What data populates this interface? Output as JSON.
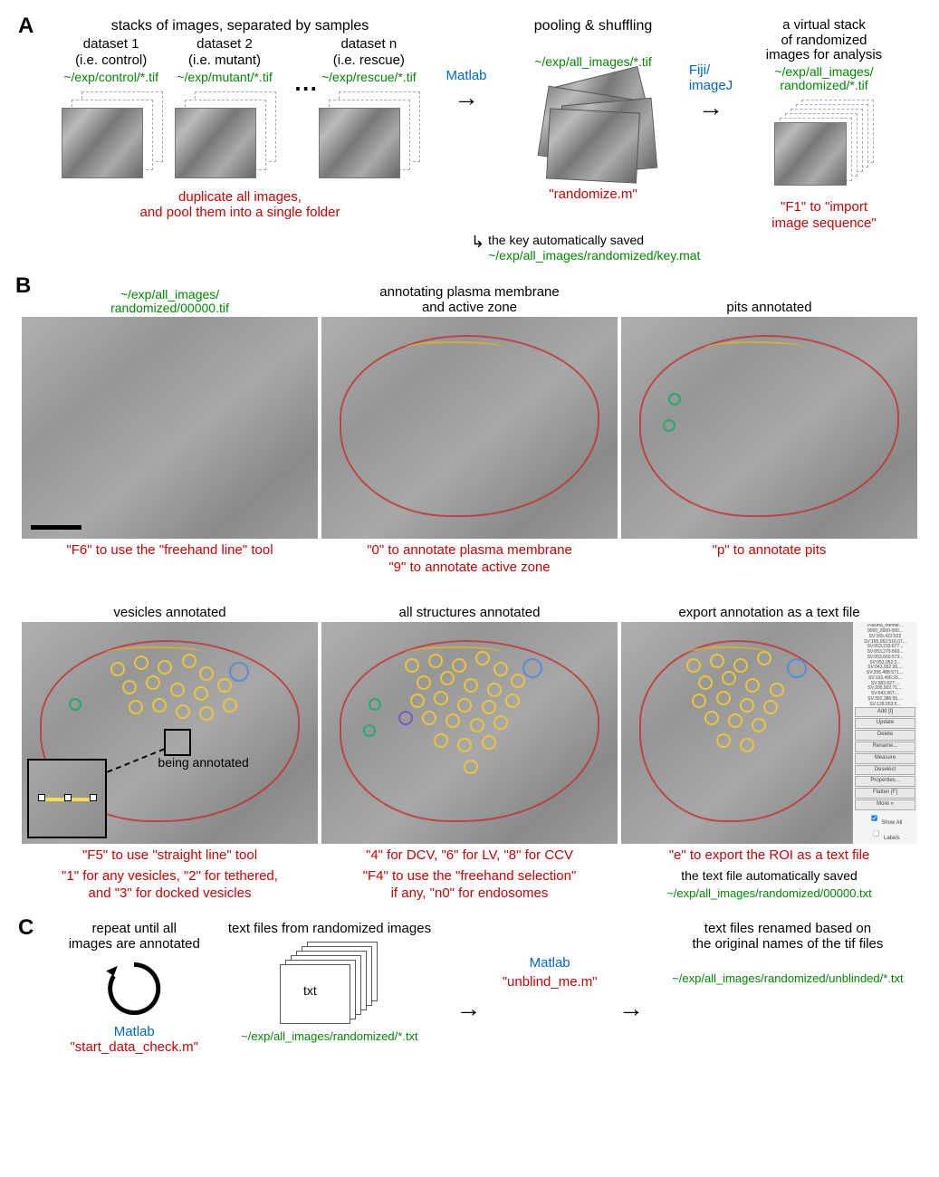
{
  "panelA": {
    "letter": "A",
    "head1": "stacks of images, separated by samples",
    "head2": "pooling & shuffling",
    "head3": "a virtual stack\nof randomized\nimages for analysis",
    "ds1_title": "dataset 1\n(i.e. control)",
    "ds1_path": "~/exp/control/*.tif",
    "ds2_title": "dataset 2\n(i.e. mutant)",
    "ds2_path": "~/exp/mutant/*.tif",
    "dsn_title": "dataset n\n(i.e. rescue)",
    "dsn_path": "~/exp/rescue/*.tif",
    "pool_path": "~/exp/all_images/*.tif",
    "rand_path": "~/exp/all_images/\nrandomized/*.tif",
    "tool1": "Matlab",
    "tool2": "Fiji/\nimageJ",
    "dup_note": "duplicate all images,\nand pool them into a single folder",
    "randomize": "\"randomize.m\"",
    "import": "\"F1\" to \"import\nimage sequence\"",
    "key_note": "the key automatically saved",
    "key_path": "~/exp/all_images/randomized/key.mat"
  },
  "panelB": {
    "letter": "B",
    "r1c1_top_path": "~/exp/all_images/\nrandomized/00000.tif",
    "r1c2_top": "annotating plasma membrane\nand active zone",
    "r1c3_top": "pits annotated",
    "r1c1_bot": "\"F6\" to use the \"freehand line\" tool",
    "r1c2_bot": "\"0\" to annotate plasma membrane\n\"9\" to annotate active zone",
    "r1c3_bot": "\"p\" to annotate pits",
    "r2c1_top": "vesicles annotated",
    "r2c2_top": "all structures annotated",
    "r2c3_top": "export annotation as a text file",
    "being": "being annotated",
    "r2c1_bot1": "\"F5\" to use \"straight line\" tool",
    "r2c1_bot2": "\"1\" for any vesicles, \"2\" for tethered,\nand \"3\" for docked vesicles",
    "r2c2_bot1": "\"4\" for DCV, \"6\" for LV, \"8\" for CCV",
    "r2c2_bot2": "\"F4\" to use the \"freehand selection\"\nif any, \"n0\" for endosomes",
    "r2c3_bot": "\"e\" to export the ROI as a text file",
    "r2c3_note": "the text file automatically saved",
    "r2c3_path": "~/exp/all_images/randomized/00000.txt",
    "roi_buttons": [
      "Add [t]",
      "Update",
      "Delete",
      "Rename...",
      "Measure",
      "Deselect",
      "Properties...",
      "Flatten [F]",
      "More »"
    ],
    "roi_footer1": "Show All",
    "roi_footer2": "Labels"
  },
  "panelC": {
    "letter": "C",
    "col1_top": "repeat until all\nimages are annotated",
    "col1_tool": "Matlab",
    "col1_script": "\"start_data_check.m\"",
    "col2_top": "text files from randomized images",
    "col2_path": "~/exp/all_images/randomized/*.txt",
    "txt_lbl": "txt",
    "col3_tool": "Matlab",
    "col3_script": "\"unblind_me.m\"",
    "col4_top": "text files renamed based on\nthe original names of the tif files",
    "col4_path": "~/exp/all_images/randomized/unblinded/*.txt"
  },
  "colors": {
    "path_green": "#008800",
    "command_red": "#cc0000",
    "tool_blue": "#0066cc",
    "membrane": "#c82828",
    "activezone": "#d8b41e",
    "vesicle": "#e8c53a",
    "pit": "#1fae6b",
    "lv": "#5b8bd4",
    "dcv": "#7e55c7"
  }
}
